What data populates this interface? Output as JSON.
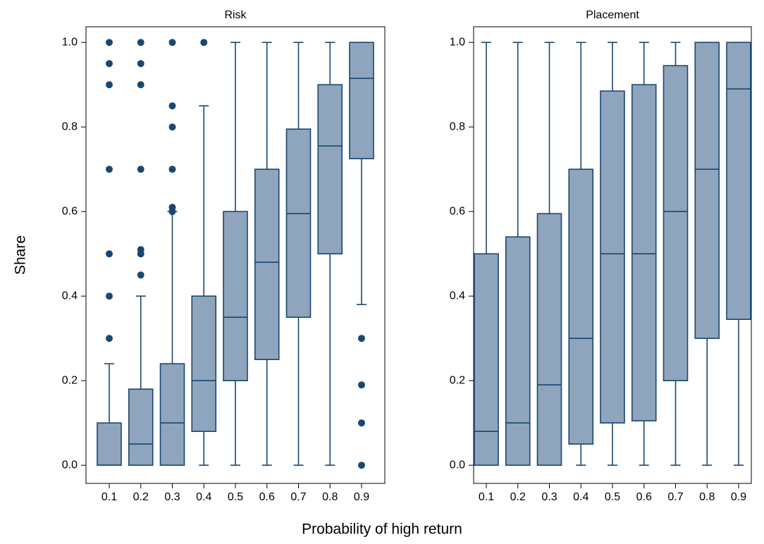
{
  "xlabel": "Probability of high return",
  "chart_data": [
    {
      "type": "box",
      "title": "Risk",
      "ylabel": "Share",
      "categories": [
        "0.1",
        "0.2",
        "0.3",
        "0.4",
        "0.5",
        "0.6",
        "0.7",
        "0.8",
        "0.9"
      ],
      "ylim": [
        -0.043,
        1.037
      ],
      "yticks": [
        {
          "value": 0,
          "label": "0.0"
        },
        0.2,
        0.4,
        0.6,
        0.8,
        {
          "value": 1,
          "label": "1.0"
        }
      ],
      "fill": "#8ea5bd",
      "color": "#1a476f",
      "boxes": [
        {
          "min": 0,
          "q1": 0,
          "median": 0,
          "q3": 0.1,
          "max": 0.24,
          "outliers": [
            0.3,
            0.4,
            0.5,
            0.7,
            0.9,
            0.95,
            1
          ]
        },
        {
          "min": 0,
          "q1": 0,
          "median": 0.05,
          "q3": 0.18,
          "max": 0.4,
          "outliers": [
            0.45,
            0.5,
            0.51,
            0.7,
            0.9,
            0.95,
            1
          ]
        },
        {
          "min": 0,
          "q1": 0,
          "median": 0.1,
          "q3": 0.24,
          "max": 0.6,
          "outliers": [
            0.6,
            0.61,
            0.7,
            0.8,
            0.85,
            1
          ]
        },
        {
          "min": 0,
          "q1": 0.08,
          "median": 0.2,
          "q3": 0.4,
          "max": 0.85,
          "outliers": [
            1
          ]
        },
        {
          "min": 0,
          "q1": 0.2,
          "median": 0.35,
          "q3": 0.6,
          "max": 1,
          "outliers": []
        },
        {
          "min": 0,
          "q1": 0.25,
          "median": 0.48,
          "q3": 0.7,
          "max": 1,
          "outliers": []
        },
        {
          "min": 0,
          "q1": 0.35,
          "median": 0.595,
          "q3": 0.795,
          "max": 1,
          "outliers": []
        },
        {
          "min": 0,
          "q1": 0.5,
          "median": 0.755,
          "q3": 0.9,
          "max": 1,
          "outliers": []
        },
        {
          "min": 0.38,
          "q1": 0.725,
          "median": 0.915,
          "q3": 1,
          "max": 1,
          "outliers": [
            0,
            0.1,
            0.19,
            0.3
          ]
        }
      ]
    },
    {
      "type": "box",
      "title": "Placement",
      "categories": [
        "0.1",
        "0.2",
        "0.3",
        "0.4",
        "0.5",
        "0.6",
        "0.7",
        "0.8",
        "0.9"
      ],
      "ylim": [
        -0.043,
        1.037
      ],
      "yticks": [
        {
          "value": 0,
          "label": "0.0"
        },
        0.2,
        0.4,
        0.6,
        0.8,
        {
          "value": 1,
          "label": "1.0"
        }
      ],
      "fill": "#8ea5bd",
      "color": "#1a476f",
      "boxes": [
        {
          "min": 0,
          "q1": 0,
          "median": 0.08,
          "q3": 0.5,
          "max": 1,
          "outliers": []
        },
        {
          "min": 0,
          "q1": 0,
          "median": 0.1,
          "q3": 0.54,
          "max": 1,
          "outliers": []
        },
        {
          "min": 0,
          "q1": 0,
          "median": 0.19,
          "q3": 0.595,
          "max": 1,
          "outliers": []
        },
        {
          "min": 0,
          "q1": 0.05,
          "median": 0.3,
          "q3": 0.7,
          "max": 1,
          "outliers": []
        },
        {
          "min": 0,
          "q1": 0.1,
          "median": 0.5,
          "q3": 0.885,
          "max": 1,
          "outliers": []
        },
        {
          "min": 0,
          "q1": 0.105,
          "median": 0.5,
          "q3": 0.9,
          "max": 1,
          "outliers": []
        },
        {
          "min": 0,
          "q1": 0.2,
          "median": 0.6,
          "q3": 0.945,
          "max": 1,
          "outliers": []
        },
        {
          "min": 0,
          "q1": 0.3,
          "median": 0.7,
          "q3": 1,
          "max": 1,
          "outliers": []
        },
        {
          "min": 0,
          "q1": 0.345,
          "median": 0.89,
          "q3": 1,
          "max": 1,
          "outliers": []
        }
      ]
    }
  ]
}
